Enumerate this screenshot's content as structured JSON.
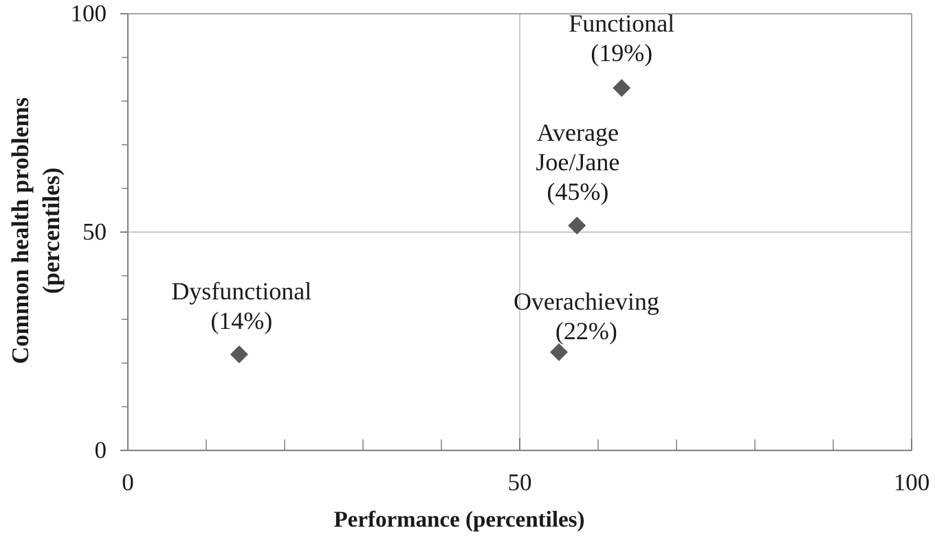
{
  "chart_data": {
    "type": "scatter",
    "title": "",
    "xlabel": "Performance (percentiles)",
    "ylabel_lines": [
      "Common health problems",
      "(percentiles)"
    ],
    "xlim": [
      0,
      100
    ],
    "ylim": [
      0,
      100
    ],
    "x_major_ticks": [
      0,
      50,
      100
    ],
    "y_major_ticks": [
      100,
      50,
      0
    ],
    "minor_tick_interval": 10,
    "gridlines": {
      "x": [
        50
      ],
      "y": [
        50
      ]
    },
    "grid_on": true,
    "legend": "none",
    "background": "#ffffff",
    "axis_color": "#808080",
    "gridline_color": "#a6a6a6",
    "text_color": "#1a1a1a",
    "marker": {
      "shape": "diamond",
      "color": "#595959",
      "size": 26
    },
    "points": [
      {
        "name": "Functional",
        "share": "19%",
        "x": 63,
        "y": 83
      },
      {
        "name": "Average Joe/Jane",
        "share": "45%",
        "x": 57.3,
        "y": 51.5
      },
      {
        "name": "Overachieving",
        "share": "22%",
        "x": 55,
        "y": 22.5
      },
      {
        "name": "Dysfunctional",
        "share": "14%",
        "x": 14.2,
        "y": 22
      }
    ],
    "annotations": [
      {
        "lines": [
          "Functional",
          "(19%)"
        ],
        "x": 63,
        "y": 94.3
      },
      {
        "lines": [
          "Average",
          "Joe/Jane",
          "(45%)"
        ],
        "x": 57.4,
        "y": 66.0
      },
      {
        "lines": [
          "Overachieving",
          "(22%)"
        ],
        "x": 58.5,
        "y": 30.7
      },
      {
        "lines": [
          "Dysfunctional",
          "(14%)"
        ],
        "x": 14.5,
        "y": 33.0
      }
    ]
  }
}
